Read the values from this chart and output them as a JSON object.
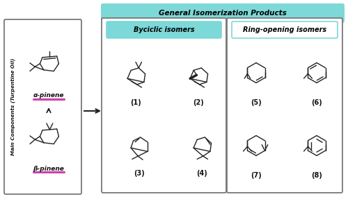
{
  "title_main": "General Isomerization Products",
  "title_bicyclic": "Byciclic isomers",
  "title_ringopen": "Ring-opening isomers",
  "ylabel_left": "Main Components (Turpentine Oil)",
  "label_alpha": "α-pinene",
  "label_beta": "β-pinene",
  "compound_labels": [
    "(1)",
    "(2)",
    "(3)",
    "(4)",
    "(5)",
    "(6)",
    "(7)",
    "(8)"
  ],
  "color_header": "#7DD8D8",
  "color_border": "#888888",
  "color_magenta": "#CC44AA",
  "bg_color": "#FFFFFF",
  "arrow_color": "#222222",
  "line_color": "#222222",
  "text_color": "#111111"
}
